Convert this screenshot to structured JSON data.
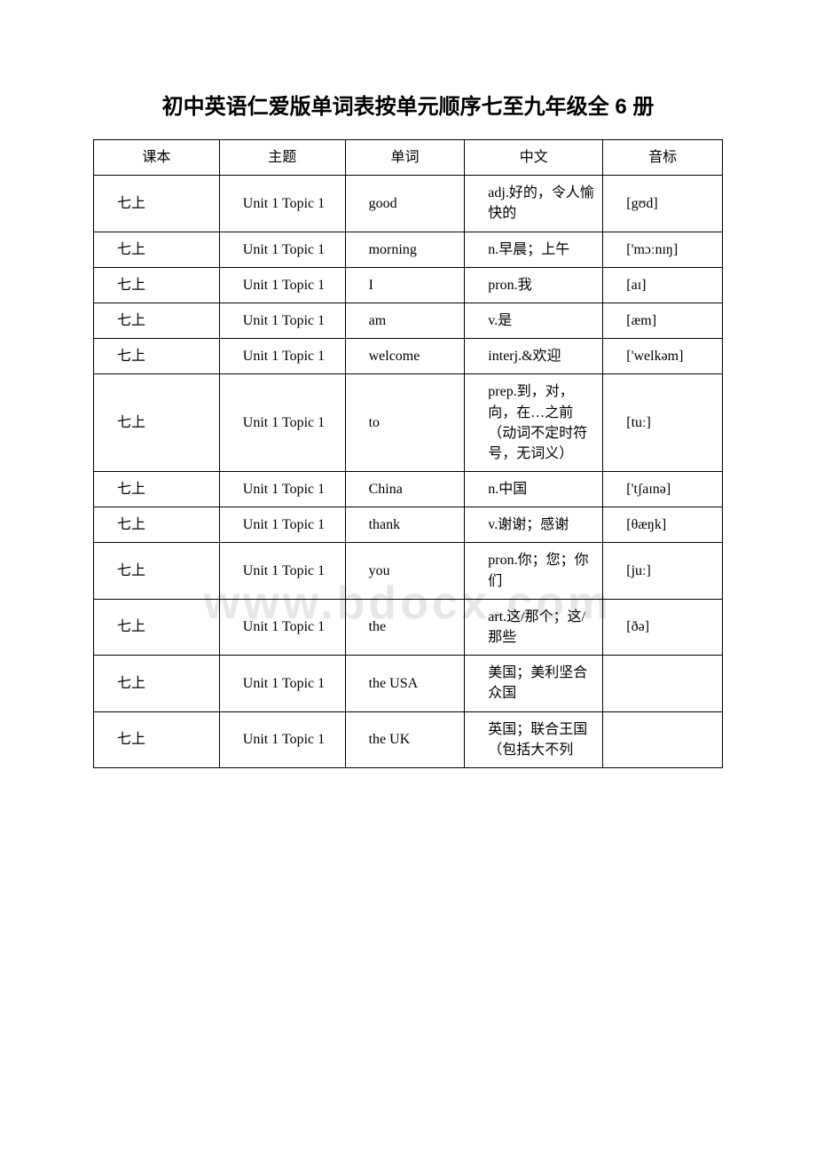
{
  "title": "初中英语仁爱版单词表按单元顺序七至九年级全 6 册",
  "watermark": "www.bdocx.com",
  "columns": [
    "课本",
    "主题",
    "单词",
    "中文",
    "音标"
  ],
  "rows": [
    {
      "book": "七上",
      "topic": "Unit 1 Topic 1",
      "word": "good",
      "cn": "adj.好的，令人愉快的",
      "ipa": "[gʊd]"
    },
    {
      "book": "七上",
      "topic": "Unit 1 Topic 1",
      "word": "morning",
      "cn": "n.早晨；上午",
      "ipa": "['mɔːnɪŋ]"
    },
    {
      "book": "七上",
      "topic": "Unit 1 Topic 1",
      "word": "I",
      "cn": "pron.我",
      "ipa": "[aɪ]"
    },
    {
      "book": "七上",
      "topic": "Unit 1 Topic 1",
      "word": "am",
      "cn": "v.是",
      "ipa": "[æm]"
    },
    {
      "book": "七上",
      "topic": "Unit 1 Topic 1",
      "word": "welcome",
      "cn": "interj.&欢迎",
      "ipa": "['welkəm]"
    },
    {
      "book": "七上",
      "topic": "Unit 1 Topic 1",
      "word": "to",
      "cn": "prep.到，对，向，在…之前（动词不定时符号，无词义）",
      "ipa": "[tuː]"
    },
    {
      "book": "七上",
      "topic": "Unit 1 Topic 1",
      "word": "China",
      "cn": "n.中国",
      "ipa": "['tʃaɪnə]"
    },
    {
      "book": "七上",
      "topic": "Unit 1 Topic 1",
      "word": "thank",
      "cn": "v.谢谢；感谢",
      "ipa": "[θæŋk]"
    },
    {
      "book": "七上",
      "topic": "Unit 1 Topic 1",
      "word": "you",
      "cn": "pron.你；您；你们",
      "ipa": "[juː]"
    },
    {
      "book": "七上",
      "topic": "Unit 1 Topic 1",
      "word": "the",
      "cn": "art.这/那个；这/那些",
      "ipa": "[ðə]"
    },
    {
      "book": "七上",
      "topic": "Unit 1 Topic 1",
      "word": "the USA",
      "cn": "美国；美利坚合众国",
      "ipa": ""
    },
    {
      "book": "七上",
      "topic": "Unit 1 Topic 1",
      "word": "the UK",
      "cn": "英国；联合王国（包括大不列",
      "ipa": ""
    }
  ],
  "style": {
    "page_bg": "#ffffff",
    "border_color": "#000000",
    "watermark_color": "#e7e7e7",
    "title_fontsize": 24,
    "cell_fontsize": 16
  }
}
